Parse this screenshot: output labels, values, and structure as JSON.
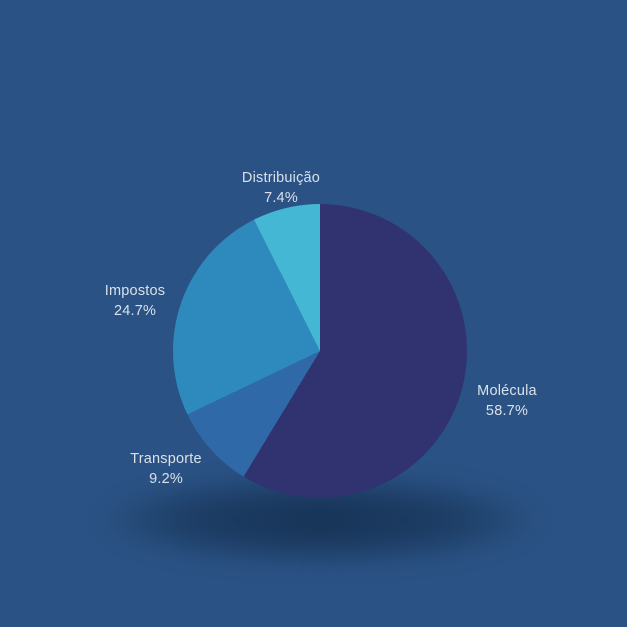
{
  "background_color": "#2a5284",
  "text_color": "#d9e1ea",
  "chart_data": {
    "type": "pie",
    "title": "",
    "legend_position": "outside-labels",
    "start_angle_deg": 0,
    "direction": "clockwise",
    "slices": [
      {
        "label": "Molécula",
        "value": 58.7,
        "percent_label": "58.7%",
        "color": "#30336f"
      },
      {
        "label": "Transporte",
        "value": 9.2,
        "percent_label": "9.2%",
        "color": "#3069a7"
      },
      {
        "label": "Impostos",
        "value": 24.7,
        "percent_label": "24.7%",
        "color": "#2e89bc"
      },
      {
        "label": "Distribuição",
        "value": 7.4,
        "percent_label": "7.4%",
        "color": "#44b7d4"
      }
    ]
  }
}
